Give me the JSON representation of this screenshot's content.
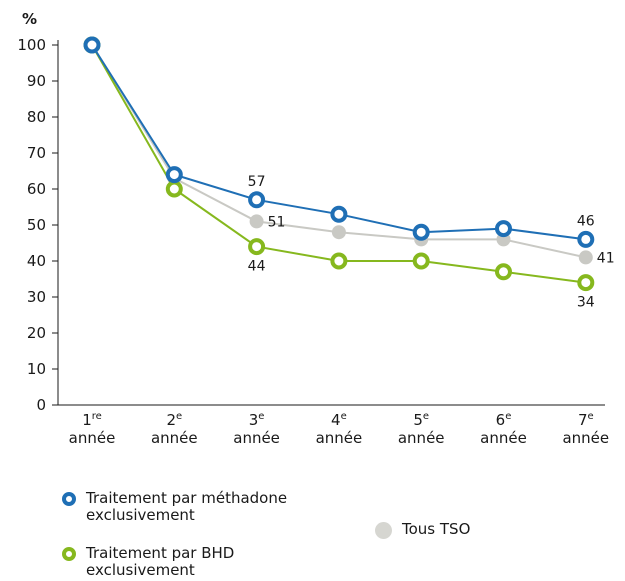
{
  "chart_data": {
    "type": "line",
    "ylabel": "%",
    "ylim": [
      0,
      100
    ],
    "yticks": [
      "0",
      "10",
      "20",
      "30",
      "40",
      "50",
      "60",
      "70",
      "80",
      "90",
      "100"
    ],
    "categories": [
      {
        "num": "1",
        "sup": "re",
        "word": "année"
      },
      {
        "num": "2",
        "sup": "e",
        "word": "année"
      },
      {
        "num": "3",
        "sup": "e",
        "word": "année"
      },
      {
        "num": "4",
        "sup": "e",
        "word": "année"
      },
      {
        "num": "5",
        "sup": "e",
        "word": "année"
      },
      {
        "num": "6",
        "sup": "e",
        "word": "année"
      },
      {
        "num": "7",
        "sup": "e",
        "word": "année"
      }
    ],
    "series": [
      {
        "name": "Tous TSO",
        "color": "#c9c9c4",
        "marker": "dot",
        "values": [
          100,
          63,
          51,
          48,
          46,
          46,
          41
        ]
      },
      {
        "name": "Traitement par BHD exclusivement",
        "color": "#86b81e",
        "marker": "ring",
        "values": [
          100,
          60,
          44,
          40,
          40,
          37,
          34
        ]
      },
      {
        "name": "Traitement par méthadone exclusivement",
        "color": "#1f6fb5",
        "marker": "ring",
        "values": [
          100,
          64,
          57,
          53,
          48,
          49,
          46
        ]
      }
    ],
    "data_labels": [
      {
        "series": 2,
        "index": 2,
        "text": "57",
        "pos": "above"
      },
      {
        "series": 0,
        "index": 2,
        "text": "51",
        "pos": "right"
      },
      {
        "series": 1,
        "index": 2,
        "text": "44",
        "pos": "below"
      },
      {
        "series": 2,
        "index": 6,
        "text": "46",
        "pos": "above"
      },
      {
        "series": 0,
        "index": 6,
        "text": "41",
        "pos": "right"
      },
      {
        "series": 1,
        "index": 6,
        "text": "34",
        "pos": "below"
      }
    ],
    "legend": {
      "methadone": "Traitement par méthadone exclusivement",
      "bhd": "Traitement par BHD exclusivement",
      "tous": "Tous TSO"
    },
    "legend_placement": "bottom",
    "grid": false
  }
}
